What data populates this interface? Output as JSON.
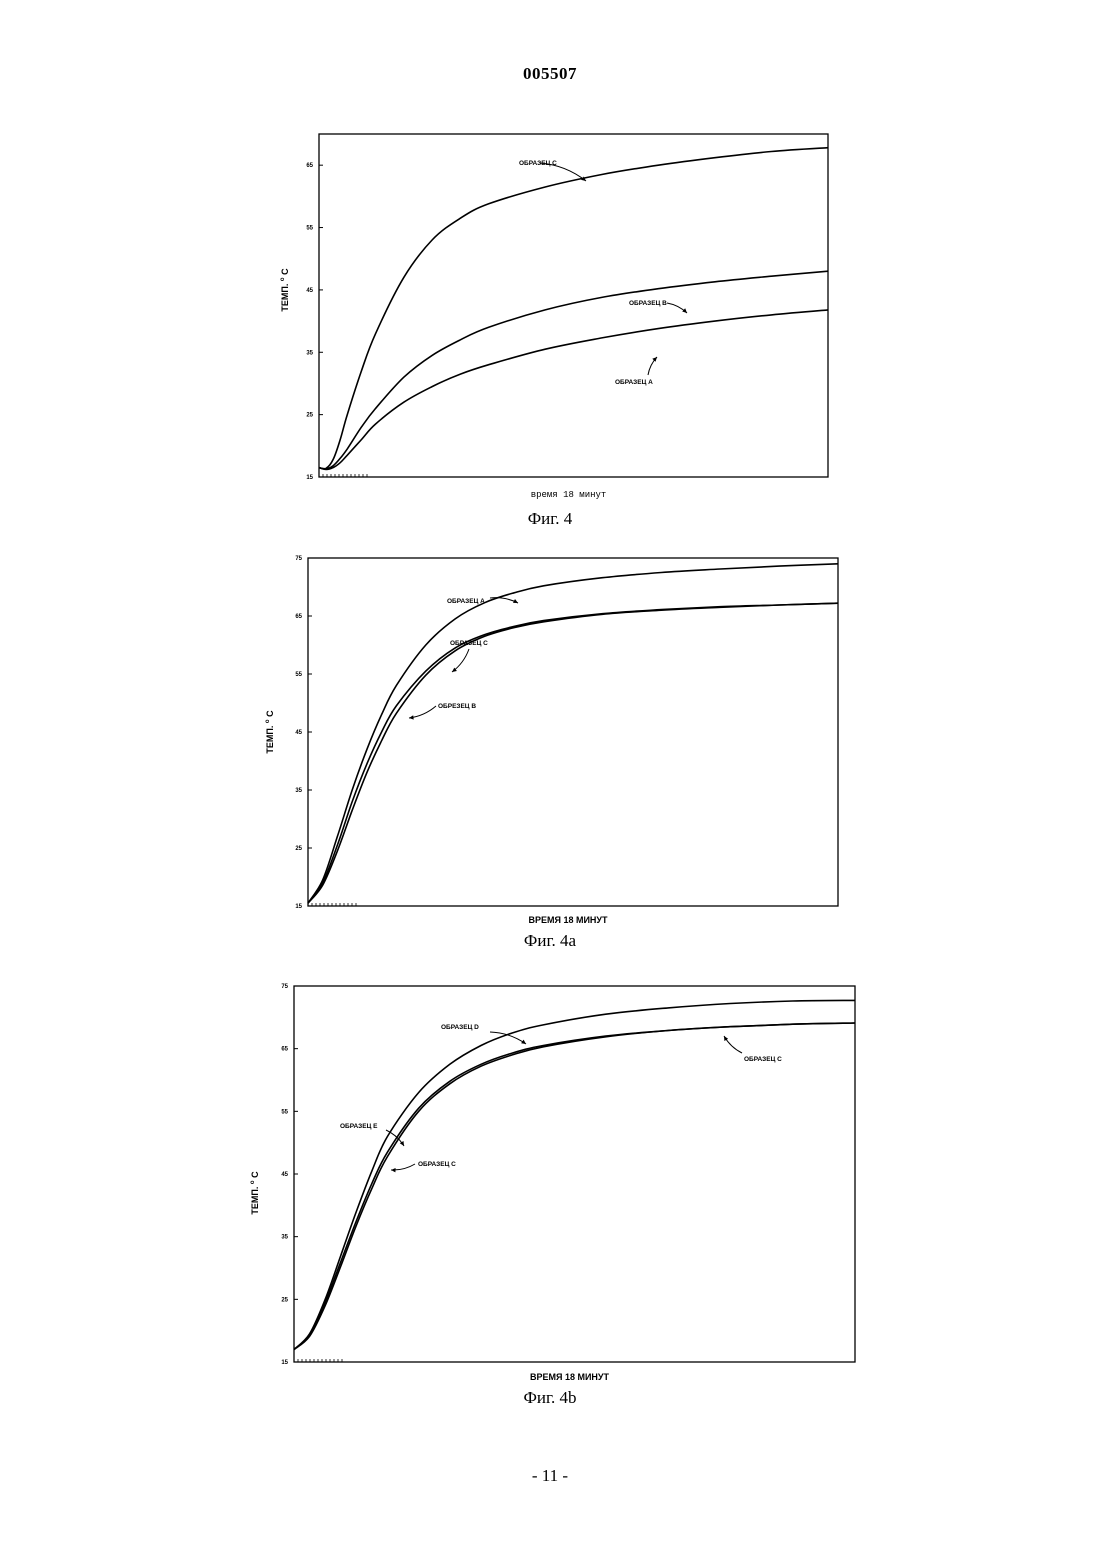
{
  "page": {
    "doc_number": "005507",
    "page_number": "- 11 -"
  },
  "chart_data": [
    {
      "type": "line",
      "caption": "Фиг. 4",
      "xlabel": "время 18 минут",
      "ylabel": "ТЕМП. °C",
      "ylabel_main": "ТЕМП.",
      "ylabel_unit": "C",
      "ylabel_degree": "o",
      "xlim": [
        0,
        18
      ],
      "ylim": [
        15,
        70
      ],
      "yticks": [
        15,
        25,
        35,
        45,
        55,
        65
      ],
      "ytick_labels": [
        "15",
        "25",
        "35",
        "45",
        "55",
        "65"
      ],
      "x": [
        0,
        0.25,
        0.5,
        0.75,
        1,
        1.5,
        2,
        3,
        4,
        5,
        6,
        8,
        10,
        12,
        14,
        16,
        18
      ],
      "series": [
        {
          "name": "ОБРАЗЕЦ C",
          "values": [
            16.5,
            16.4,
            17.8,
            21,
            25,
            32,
            38,
            47,
            53,
            56.5,
            58.8,
            61.5,
            63.5,
            65,
            66.2,
            67.2,
            67.8
          ]
        },
        {
          "name": "ОБРАЗЕЦ B",
          "values": [
            16.5,
            16.3,
            16.8,
            18,
            19.5,
            23,
            26,
            31,
            34.5,
            37,
            39,
            41.8,
            43.8,
            45.2,
            46.3,
            47.2,
            48
          ]
        },
        {
          "name": "ОБРАЗЕЦ A",
          "values": [
            16.5,
            16.2,
            16.5,
            17.3,
            18.5,
            21,
            23.5,
            27,
            29.5,
            31.5,
            33,
            35.5,
            37.3,
            38.8,
            40,
            41,
            41.8
          ]
        }
      ],
      "annotations": [
        {
          "text": "ОБРАЗЕЦ C",
          "series": "ОБРАЗЕЦ C"
        },
        {
          "text": "ОБРАЗЕЦ B",
          "series": "ОБРАЗЕЦ B"
        },
        {
          "text": "ОБРАЗЕЦ A",
          "series": "ОБРАЗЕЦ A"
        }
      ],
      "grid": false
    },
    {
      "type": "line",
      "caption": "Фиг. 4а",
      "xlabel": "ВРЕМЯ 18 МИНУТ",
      "ylabel": "ТЕМП. °C",
      "ylabel_main": "ТЕМП.",
      "ylabel_unit": "C",
      "ylabel_degree": "o",
      "xlim": [
        0,
        18
      ],
      "ylim": [
        15,
        75
      ],
      "yticks": [
        15,
        25,
        35,
        45,
        55,
        65,
        75
      ],
      "ytick_labels": [
        "15",
        "25",
        "35",
        "45",
        "55",
        "65",
        "75"
      ],
      "x": [
        0,
        0.5,
        1,
        1.5,
        2,
        2.5,
        3,
        4,
        5,
        6,
        7,
        8,
        10,
        12,
        14,
        16,
        18
      ],
      "series": [
        {
          "name": "ОБРАЗЕЦ A",
          "values": [
            15.5,
            19.5,
            27,
            35,
            42,
            48,
            53,
            60,
            64.5,
            67.3,
            69,
            70.2,
            71.6,
            72.5,
            73.1,
            73.6,
            74
          ]
        },
        {
          "name": "ОБРАЗЕЦ C",
          "values": [
            15.5,
            19,
            25.5,
            33,
            39.5,
            45,
            49.5,
            55.5,
            59.5,
            61.8,
            63.2,
            64.2,
            65.4,
            66.1,
            66.6,
            66.9,
            67.2
          ]
        },
        {
          "name": "ОБРЕЗЕЦ B",
          "values": [
            15.5,
            18.6,
            24.5,
            31.5,
            38,
            43.5,
            48.2,
            54.8,
            59,
            61.5,
            63,
            64,
            65.3,
            66,
            66.5,
            66.9,
            67.2
          ]
        }
      ],
      "annotations": [
        {
          "text": "ОБРАЗЕЦ A",
          "series": "ОБРАЗЕЦ A"
        },
        {
          "text": "ОБРАЗЕЦ C",
          "series": "ОБРАЗЕЦ C"
        },
        {
          "text": "ОБРЕЗЕЦ B",
          "series": "ОБРЕЗЕЦ B"
        }
      ],
      "grid": false
    },
    {
      "type": "line",
      "caption": "Фиг. 4b",
      "xlabel": "ВРЕМЯ 18 МИНУТ",
      "ylabel": "ТЕМП. °C",
      "ylabel_main": "ТЕМП.",
      "ylabel_unit": "C",
      "ylabel_degree": "o",
      "xlim": [
        0,
        18
      ],
      "ylim": [
        15,
        75
      ],
      "yticks": [
        15,
        25,
        35,
        45,
        55,
        65,
        75
      ],
      "ytick_labels": [
        "15",
        "25",
        "35",
        "45",
        "55",
        "65",
        "75"
      ],
      "x": [
        0,
        0.5,
        1,
        1.5,
        2,
        2.5,
        3,
        4,
        5,
        6,
        7,
        8,
        10,
        12,
        14,
        16,
        18
      ],
      "series": [
        {
          "name": "ОБРАЗЕЦ D",
          "values": [
            17,
            19.5,
            25,
            32,
            39,
            45.5,
            51,
            58,
            62.5,
            65.5,
            67.5,
            68.8,
            70.5,
            71.5,
            72.2,
            72.6,
            72.7
          ]
        },
        {
          "name": "ОБРАЗЕЦ C",
          "values": [
            17,
            19.3,
            24.5,
            31,
            37.5,
            43.5,
            48.5,
            55.5,
            59.8,
            62.5,
            64.3,
            65.5,
            67,
            67.9,
            68.5,
            68.9,
            69.1
          ]
        },
        {
          "name": "ОБРАЗЕЦ E",
          "values": [
            17,
            19.1,
            24,
            30.3,
            36.8,
            42.7,
            47.8,
            55,
            59.4,
            62.2,
            64,
            65.3,
            66.9,
            67.9,
            68.5,
            68.9,
            69.1
          ]
        }
      ],
      "annotations": [
        {
          "text": "ОБРАЗЕЦ D",
          "series": "ОБРАЗЕЦ D"
        },
        {
          "text": "ОБРАЗЕЦ C",
          "series": "ОБРАЗЕЦ C"
        },
        {
          "text": "ОБРАЗЕЦ E",
          "series": "ОБРАЗЕЦ E"
        },
        {
          "text": "ОБРАЗЕЦ C",
          "series": "ОБРАЗЕЦ C"
        }
      ],
      "grid": false
    }
  ]
}
